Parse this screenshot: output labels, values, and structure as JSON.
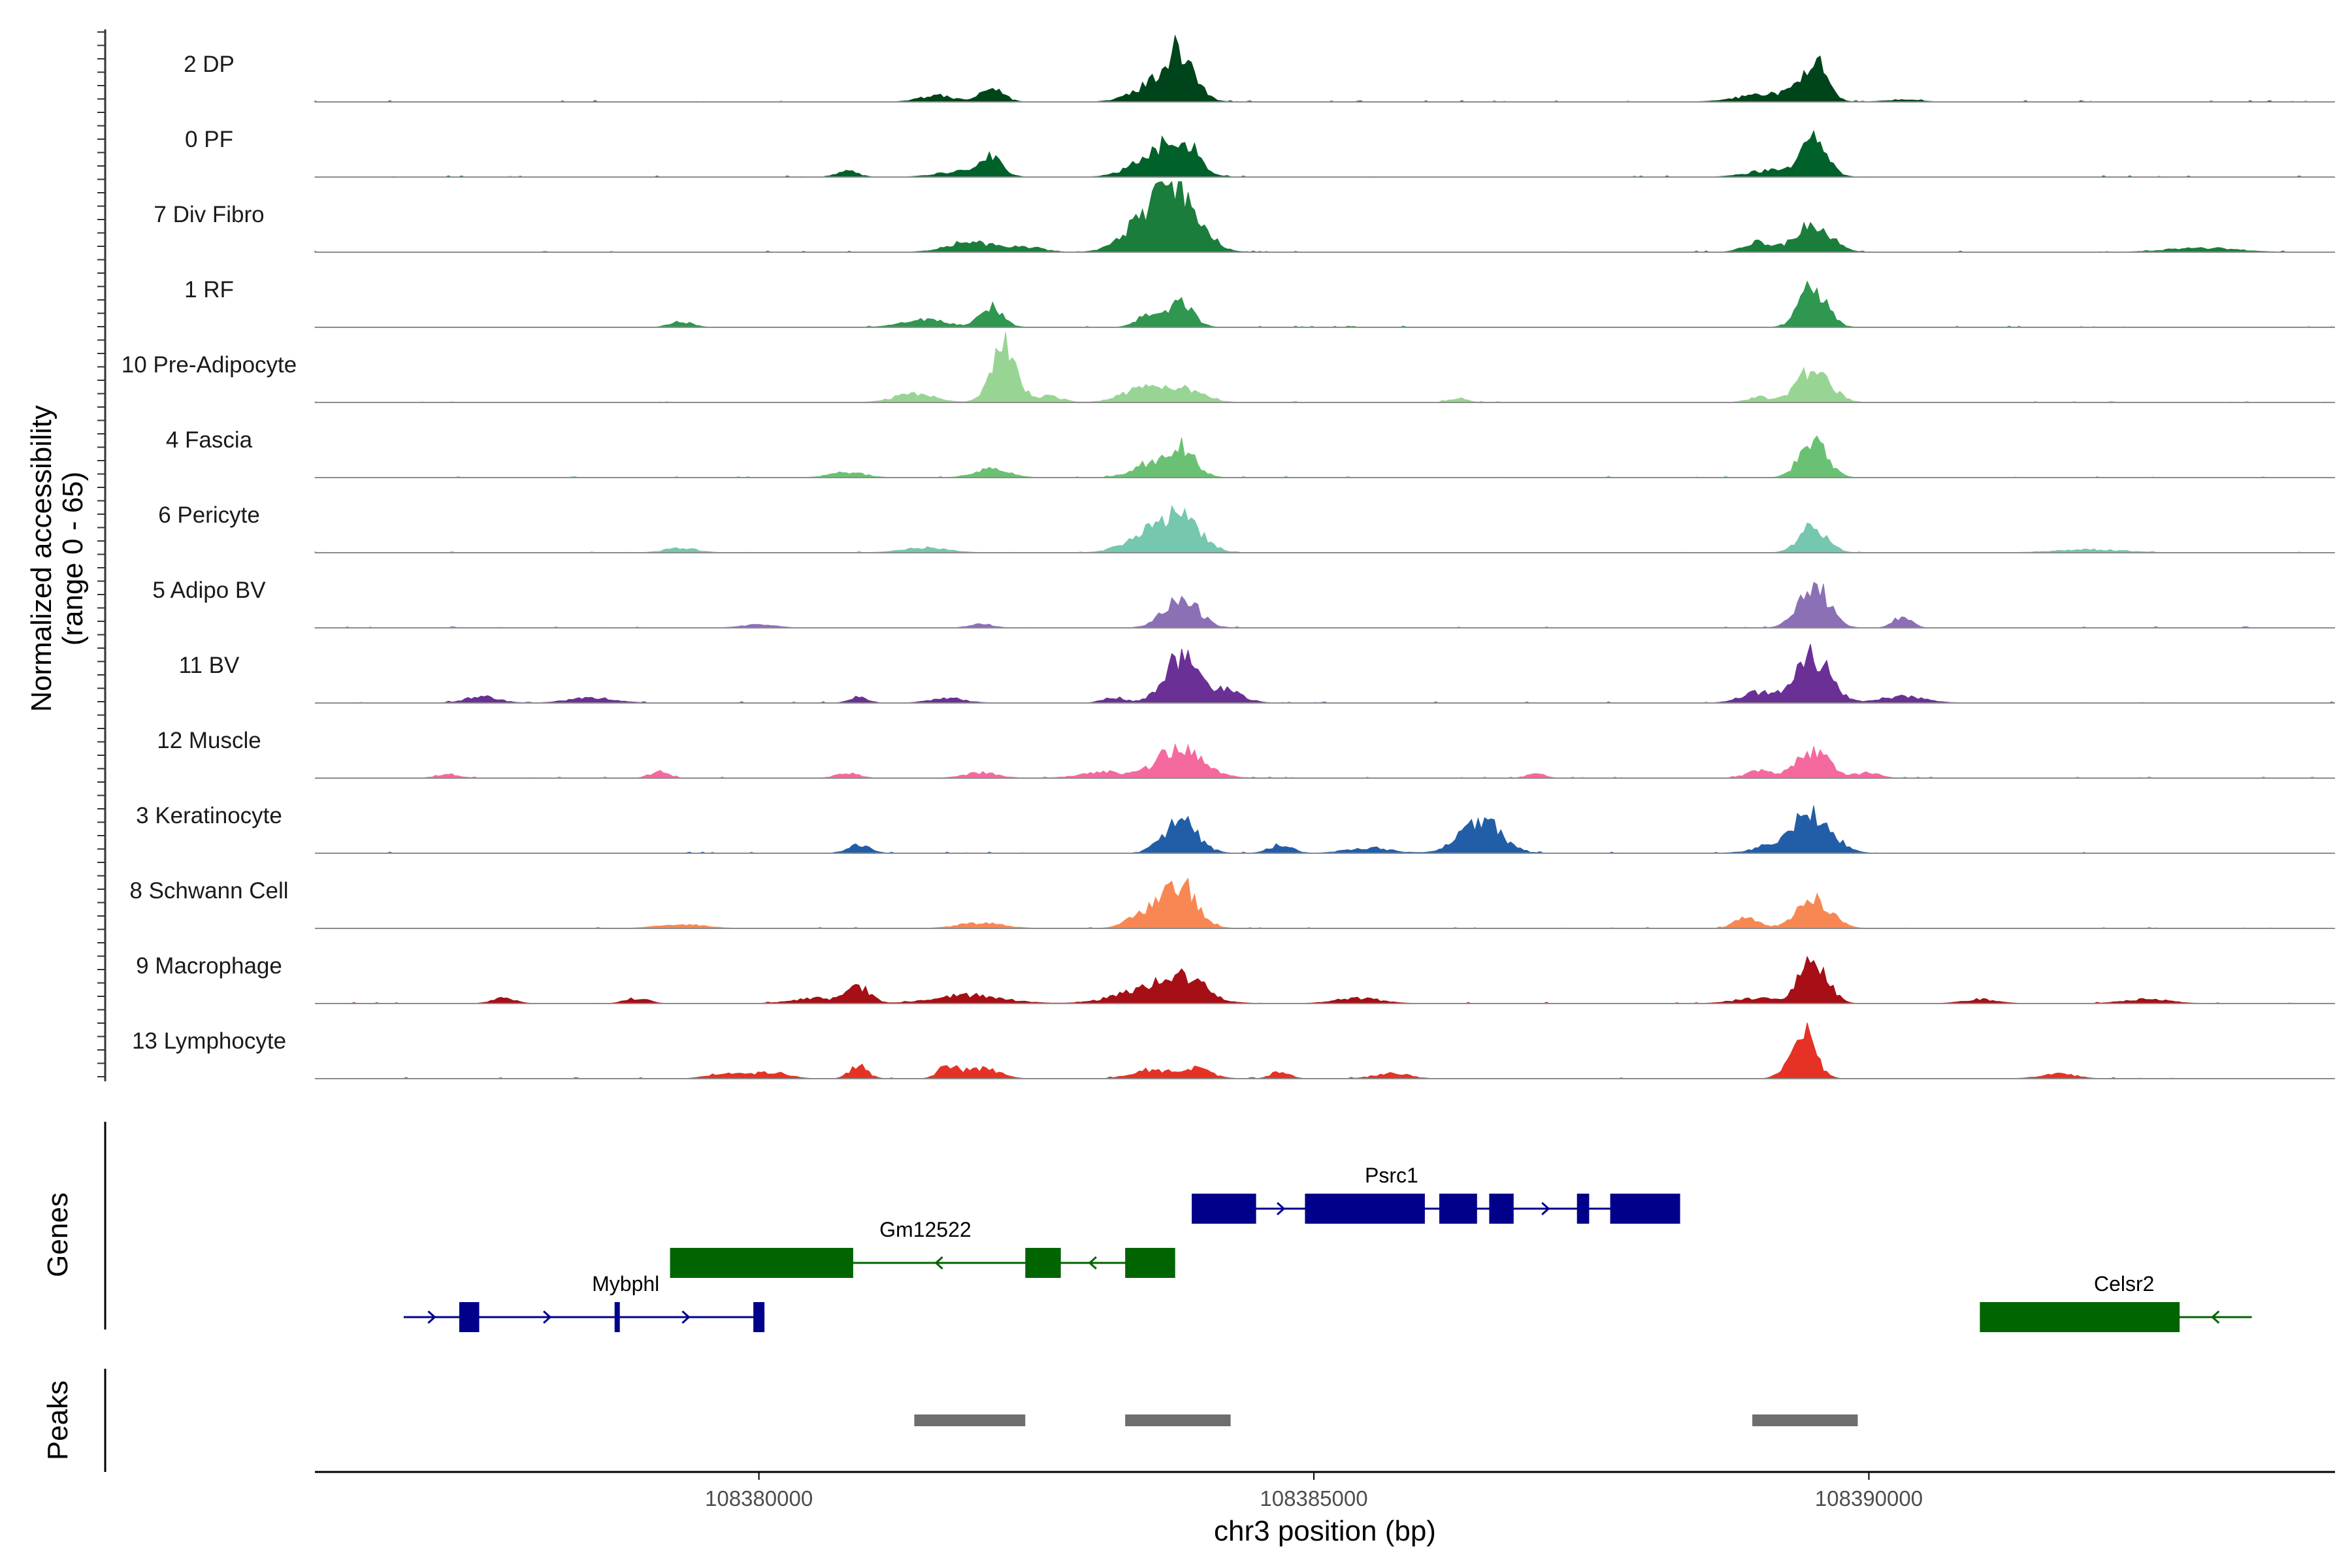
{
  "chart_data": {
    "type": "area",
    "title": "",
    "chromosome": "chr3",
    "xlim": [
      108376000,
      108394200
    ],
    "xlabel": "chr3 position (bp)",
    "ylabel_line1": "Normalized accessibility",
    "ylabel_line2": "(range 0 - 65)",
    "ylim": [
      0,
      65
    ],
    "x_ticks": [
      108380000,
      108385000,
      108390000
    ],
    "x_tick_labels": [
      "108380000",
      "108385000",
      "108390000"
    ],
    "genes_label": "Genes",
    "peaks_label": "Peaks",
    "series": [
      {
        "name": "2 DP",
        "color": "#00441b",
        "peaks": [
          [
            108381600,
            6,
            150
          ],
          [
            108382100,
            14,
            100
          ],
          [
            108383800,
            38,
            130
          ],
          [
            108383600,
            18,
            200
          ],
          [
            108389500,
            38,
            110
          ],
          [
            108389100,
            8,
            250
          ],
          [
            108390300,
            2,
            150
          ]
        ]
      },
      {
        "name": "0 PF",
        "color": "#00612a",
        "peaks": [
          [
            108380800,
            6,
            90
          ],
          [
            108381800,
            5,
            200
          ],
          [
            108382100,
            18,
            100
          ],
          [
            108383800,
            36,
            150
          ],
          [
            108383500,
            15,
            180
          ],
          [
            108389500,
            36,
            120
          ],
          [
            108389100,
            6,
            200
          ]
        ]
      },
      {
        "name": "7 Div Fibro",
        "color": "#1a7d3c",
        "peaks": [
          [
            108381900,
            10,
            200
          ],
          [
            108382400,
            5,
            150
          ],
          [
            108383800,
            55,
            180
          ],
          [
            108383500,
            30,
            200
          ],
          [
            108389500,
            28,
            150
          ],
          [
            108389000,
            10,
            120
          ],
          [
            108393000,
            4,
            300
          ]
        ]
      },
      {
        "name": "1 RF",
        "color": "#2f974f",
        "peaks": [
          [
            108379300,
            5,
            100
          ],
          [
            108381500,
            7,
            200
          ],
          [
            108382100,
            20,
            100
          ],
          [
            108383500,
            12,
            100
          ],
          [
            108383800,
            25,
            110
          ],
          [
            108389500,
            38,
            120
          ]
        ]
      },
      {
        "name": "10 Pre-Adipocyte",
        "color": "#98d594",
        "peaks": [
          [
            108381400,
            8,
            180
          ],
          [
            108382200,
            58,
            110
          ],
          [
            108382600,
            6,
            120
          ],
          [
            108383500,
            15,
            200
          ],
          [
            108383900,
            10,
            150
          ],
          [
            108389500,
            30,
            150
          ],
          [
            108389000,
            5,
            100
          ],
          [
            108386300,
            4,
            80
          ]
        ]
      },
      {
        "name": "4 Fascia",
        "color": "#6bc173",
        "peaks": [
          [
            108380800,
            5,
            150
          ],
          [
            108382100,
            8,
            150
          ],
          [
            108383800,
            28,
            130
          ],
          [
            108383500,
            12,
            150
          ],
          [
            108389500,
            35,
            120
          ]
        ]
      },
      {
        "name": "6 Pericyte",
        "color": "#75c7b0",
        "peaks": [
          [
            108379300,
            4,
            150
          ],
          [
            108381500,
            5,
            200
          ],
          [
            108383800,
            30,
            180
          ],
          [
            108383500,
            15,
            200
          ],
          [
            108389500,
            25,
            120
          ],
          [
            108392000,
            3,
            300
          ]
        ]
      },
      {
        "name": "5 Adipo BV",
        "color": "#8c70b6",
        "peaks": [
          [
            108380000,
            3,
            150
          ],
          [
            108382000,
            4,
            100
          ],
          [
            108383800,
            30,
            150
          ],
          [
            108389500,
            42,
            130
          ],
          [
            108390300,
            10,
            80
          ]
        ]
      },
      {
        "name": "11 BV",
        "color": "#6a3095",
        "peaks": [
          [
            108377500,
            6,
            150
          ],
          [
            108378500,
            5,
            200
          ],
          [
            108380900,
            6,
            80
          ],
          [
            108381700,
            5,
            150
          ],
          [
            108383200,
            5,
            100
          ],
          [
            108383800,
            42,
            150
          ],
          [
            108384200,
            12,
            150
          ],
          [
            108389500,
            45,
            150
          ],
          [
            108389000,
            10,
            150
          ],
          [
            108390300,
            6,
            200
          ]
        ]
      },
      {
        "name": "12 Muscle",
        "color": "#f56a9e",
        "peaks": [
          [
            108377200,
            4,
            100
          ],
          [
            108379100,
            6,
            80
          ],
          [
            108380800,
            5,
            100
          ],
          [
            108382000,
            5,
            150
          ],
          [
            108383100,
            6,
            200
          ],
          [
            108383800,
            30,
            200
          ],
          [
            108389000,
            8,
            100
          ],
          [
            108389500,
            25,
            150
          ],
          [
            108390000,
            5,
            100
          ],
          [
            108387000,
            4,
            80
          ]
        ]
      },
      {
        "name": "3 Keratinocyte",
        "color": "#225ea8",
        "peaks": [
          [
            108380900,
            8,
            100
          ],
          [
            108383800,
            30,
            150
          ],
          [
            108384700,
            8,
            100
          ],
          [
            108385500,
            5,
            200
          ],
          [
            108386500,
            32,
            180
          ],
          [
            108389500,
            34,
            170
          ],
          [
            108389200,
            8,
            200
          ]
        ]
      },
      {
        "name": "8 Schwann Cell",
        "color": "#f88853",
        "peaks": [
          [
            108379300,
            4,
            200
          ],
          [
            108382000,
            5,
            200
          ],
          [
            108383800,
            40,
            150
          ],
          [
            108383500,
            15,
            150
          ],
          [
            108388900,
            10,
            100
          ],
          [
            108389500,
            28,
            150
          ]
        ]
      },
      {
        "name": "9 Macrophage",
        "color": "#a50f15",
        "peaks": [
          [
            108377700,
            5,
            100
          ],
          [
            108378900,
            5,
            100
          ],
          [
            108380900,
            15,
            100
          ],
          [
            108380500,
            5,
            200
          ],
          [
            108381900,
            8,
            300
          ],
          [
            108383600,
            18,
            300
          ],
          [
            108383900,
            14,
            150
          ],
          [
            108385400,
            5,
            200
          ],
          [
            108389500,
            45,
            120
          ],
          [
            108389000,
            5,
            200
          ],
          [
            108391000,
            4,
            150
          ],
          [
            108392500,
            4,
            200
          ]
        ]
      },
      {
        "name": "13 Lymphocyte",
        "color": "#e53225",
        "peaks": [
          [
            108380100,
            6,
            150
          ],
          [
            108379700,
            5,
            150
          ],
          [
            108380900,
            12,
            80
          ],
          [
            108381700,
            12,
            80
          ],
          [
            108382000,
            10,
            150
          ],
          [
            108383500,
            8,
            150
          ],
          [
            108383900,
            10,
            150
          ],
          [
            108384700,
            7,
            80
          ],
          [
            108385700,
            5,
            150
          ],
          [
            108389400,
            45,
            110
          ],
          [
            108391700,
            5,
            150
          ]
        ]
      }
    ],
    "genes": [
      {
        "name": "Psrc1",
        "strand": "+",
        "color": "#00008b",
        "row": 0,
        "start": 108383900,
        "end": 108388300,
        "label_pos": 108385700,
        "exons": [
          [
            108383900,
            108384480
          ],
          [
            108384920,
            108386000
          ],
          [
            108386130,
            108386470
          ],
          [
            108386580,
            108386800
          ],
          [
            108387370,
            108387480
          ],
          [
            108387670,
            108388300
          ]
        ]
      },
      {
        "name": "Gm12522",
        "strand": "-",
        "color": "#006400",
        "row": 1,
        "start": 108379200,
        "end": 108383750,
        "label_pos": 108381500,
        "exons": [
          [
            108379200,
            108380850
          ],
          [
            108382400,
            108382720
          ],
          [
            108383300,
            108383750
          ]
        ]
      },
      {
        "name": "Mybphl",
        "strand": "+",
        "color": "#00008b",
        "row": 2,
        "start": 108376800,
        "end": 108380050,
        "label_pos": 108378800,
        "exons": [
          [
            108377300,
            108377480
          ],
          [
            108378700,
            108378730
          ],
          [
            108379950,
            108380050
          ]
        ]
      },
      {
        "name": "Celsr2",
        "strand": "-",
        "color": "#006400",
        "row": 2,
        "start": 108391000,
        "end": 108393450,
        "label_pos": 108392300,
        "exons": [
          [
            108391000,
            108392800
          ]
        ]
      }
    ],
    "peak_regions": [
      [
        108381400,
        108382400
      ],
      [
        108383300,
        108384250
      ],
      [
        108388950,
        108389900
      ]
    ]
  }
}
